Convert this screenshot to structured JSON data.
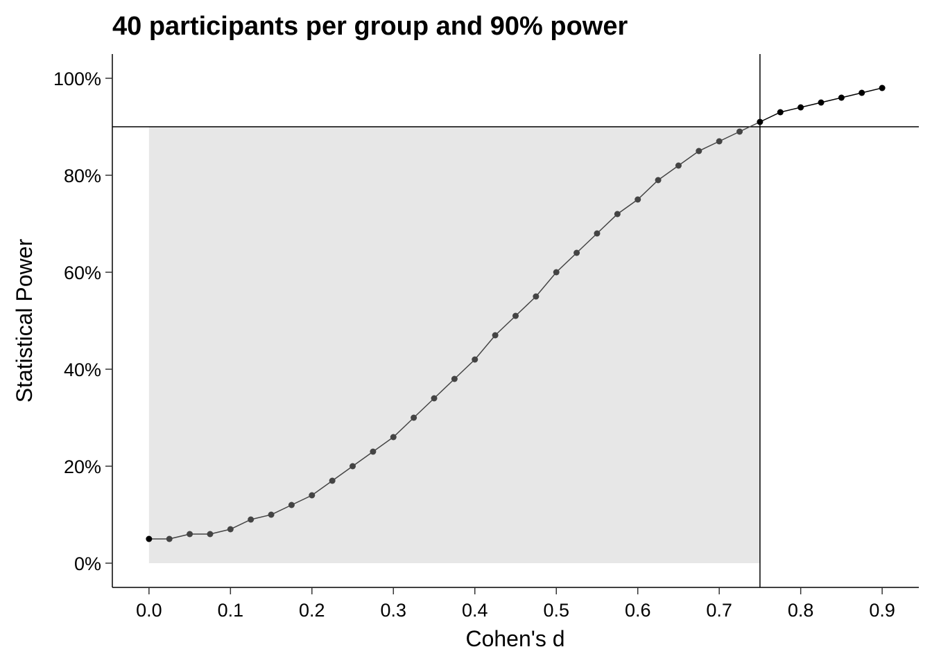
{
  "chart_data": {
    "type": "line",
    "title": "40 participants per group and 90% power",
    "xlabel": "Cohen's d",
    "ylabel": "Statistical Power",
    "xlim": [
      -0.045,
      0.945
    ],
    "ylim": [
      -0.05,
      1.05
    ],
    "x_ticks": [
      0.0,
      0.1,
      0.2,
      0.3,
      0.4,
      0.5,
      0.6,
      0.7,
      0.8,
      0.9
    ],
    "x_tick_labels": [
      "0.0",
      "0.1",
      "0.2",
      "0.3",
      "0.4",
      "0.5",
      "0.6",
      "0.7",
      "0.8",
      "0.9"
    ],
    "y_ticks": [
      0,
      0.2,
      0.4,
      0.6,
      0.8,
      1.0
    ],
    "y_tick_labels": [
      "0%",
      "20%",
      "40%",
      "60%",
      "80%",
      "100%"
    ],
    "grid": false,
    "legend": "none",
    "reference_lines": {
      "hline_power": 0.9,
      "vline_d": 0.75
    },
    "shaded_region": {
      "x": [
        0.0,
        0.75
      ],
      "y": [
        0.0,
        0.9
      ],
      "color": "#e7e7e7"
    },
    "colors": {
      "below_threshold": "#444444",
      "above_threshold": "#000000"
    },
    "series": [
      {
        "x": [
          0.0,
          0.025,
          0.05,
          0.075,
          0.1,
          0.125,
          0.15,
          0.175,
          0.2,
          0.225,
          0.25,
          0.275,
          0.3,
          0.325,
          0.35,
          0.375,
          0.4,
          0.425,
          0.45,
          0.475,
          0.5,
          0.525,
          0.55,
          0.575,
          0.6,
          0.625,
          0.65,
          0.675,
          0.7,
          0.725,
          0.75,
          0.775,
          0.8,
          0.825,
          0.85,
          0.875,
          0.9
        ],
        "y": [
          0.05,
          0.05,
          0.06,
          0.06,
          0.07,
          0.09,
          0.1,
          0.12,
          0.14,
          0.17,
          0.2,
          0.23,
          0.26,
          0.3,
          0.34,
          0.38,
          0.42,
          0.47,
          0.51,
          0.55,
          0.6,
          0.64,
          0.68,
          0.72,
          0.75,
          0.79,
          0.82,
          0.85,
          0.87,
          0.89,
          0.91,
          0.93,
          0.94,
          0.95,
          0.96,
          0.97,
          0.98
        ]
      }
    ]
  }
}
